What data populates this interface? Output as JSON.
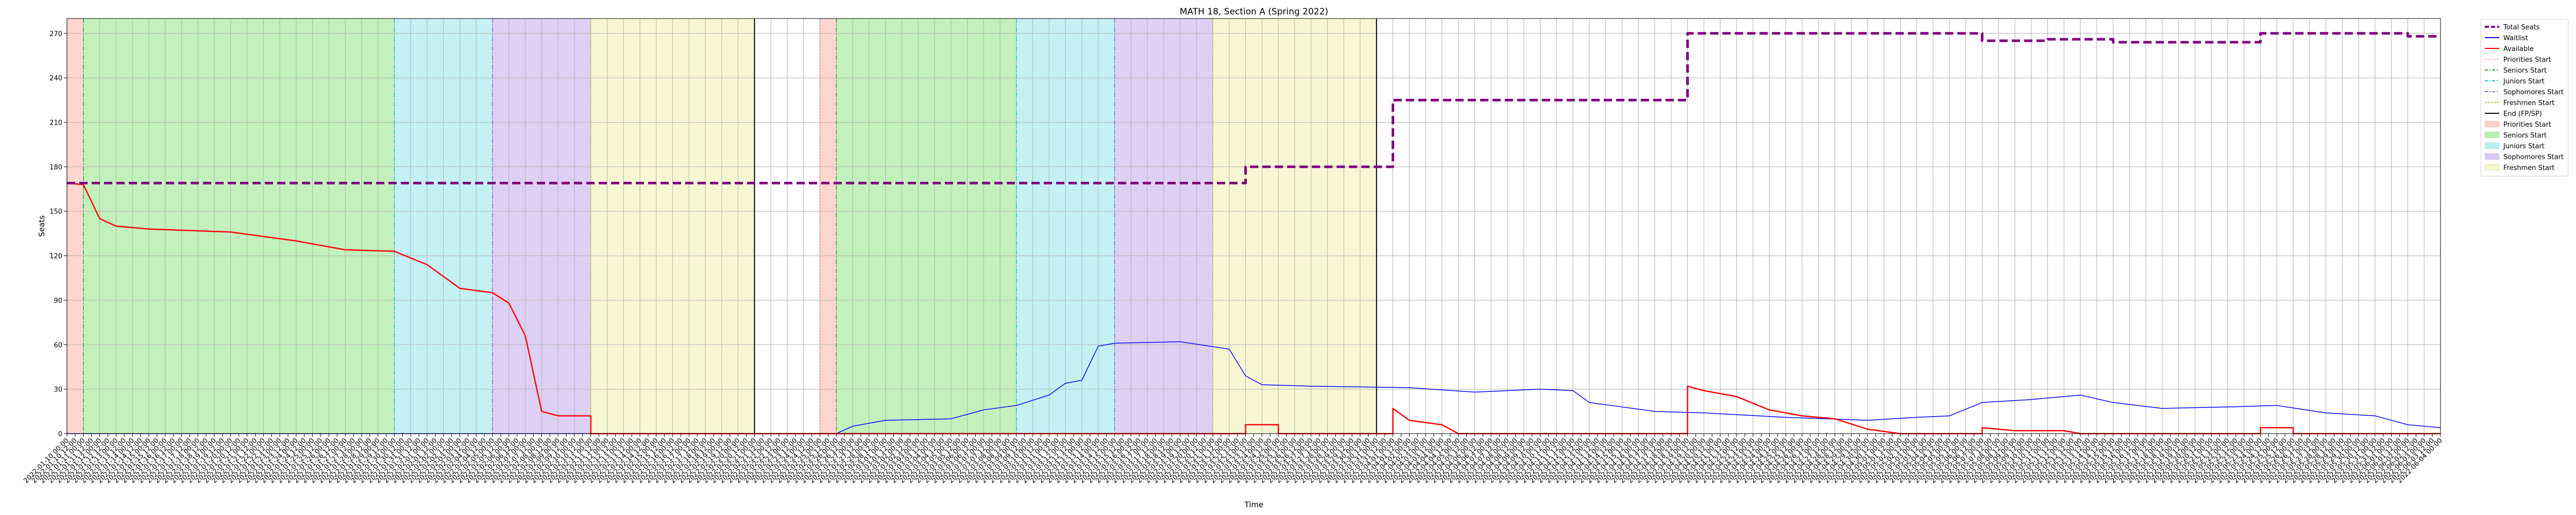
{
  "chart_data": {
    "type": "line",
    "title": "MATH 18, Section A (Spring 2022)",
    "xlabel": "Time",
    "ylabel": "Seats",
    "ylim": [
      0,
      280
    ],
    "yticks": [
      0,
      30,
      60,
      90,
      120,
      150,
      180,
      210,
      240,
      270
    ],
    "grid": true,
    "legend_placement": "outside-right-top",
    "colors": {
      "total": "#7f007f",
      "waitlist": "#0000ff",
      "available": "#ff0000",
      "priorities": "#ffb3a8",
      "seniors": "#86e07a",
      "juniors": "#7fe0e6",
      "sophomores": "#b59ae6",
      "freshmen": "#f0f0a8",
      "end": "#000000"
    },
    "x_range": [
      "2022-01-10",
      "2022-06-04"
    ],
    "series": [
      {
        "name": "Total Seats",
        "style": "dashed",
        "points": [
          [
            "2022-01-10",
            169
          ],
          [
            "2022-03-23",
            169
          ],
          [
            "2022-03-23",
            180
          ],
          [
            "2022-04-01",
            180
          ],
          [
            "2022-04-01",
            225
          ],
          [
            "2022-04-19",
            225
          ],
          [
            "2022-04-19",
            270
          ],
          [
            "2022-05-07",
            270
          ],
          [
            "2022-05-07",
            265
          ],
          [
            "2022-05-11",
            265
          ],
          [
            "2022-05-11",
            266
          ],
          [
            "2022-05-15",
            266
          ],
          [
            "2022-05-15",
            264
          ],
          [
            "2022-05-24",
            264
          ],
          [
            "2022-05-24",
            270
          ],
          [
            "2022-06-02",
            270
          ],
          [
            "2022-06-02",
            268
          ],
          [
            "2022-06-04",
            268
          ]
        ]
      },
      {
        "name": "Waitlist",
        "style": "solid",
        "points": [
          [
            "2022-01-10",
            0
          ],
          [
            "2022-02-26",
            0
          ],
          [
            "2022-02-27",
            5
          ],
          [
            "2022-03-01",
            9
          ],
          [
            "2022-03-05",
            10
          ],
          [
            "2022-03-07",
            16
          ],
          [
            "2022-03-09",
            19
          ],
          [
            "2022-03-11",
            26
          ],
          [
            "2022-03-12",
            34
          ],
          [
            "2022-03-13",
            36
          ],
          [
            "2022-03-14",
            59
          ],
          [
            "2022-03-15",
            61
          ],
          [
            "2022-03-19",
            62
          ],
          [
            "2022-03-22",
            57
          ],
          [
            "2022-03-23",
            39
          ],
          [
            "2022-03-24",
            33
          ],
          [
            "2022-03-27",
            32
          ],
          [
            "2022-04-02",
            31
          ],
          [
            "2022-04-06",
            28
          ],
          [
            "2022-04-10",
            30
          ],
          [
            "2022-04-12",
            29
          ],
          [
            "2022-04-13",
            21
          ],
          [
            "2022-04-15",
            18
          ],
          [
            "2022-04-17",
            15
          ],
          [
            "2022-04-20",
            14
          ],
          [
            "2022-04-25",
            11
          ],
          [
            "2022-04-30",
            9
          ],
          [
            "2022-05-03",
            11
          ],
          [
            "2022-05-05",
            12
          ],
          [
            "2022-05-07",
            21
          ],
          [
            "2022-05-10",
            23
          ],
          [
            "2022-05-13",
            26
          ],
          [
            "2022-05-15",
            21
          ],
          [
            "2022-05-18",
            17
          ],
          [
            "2022-05-22",
            18
          ],
          [
            "2022-05-25",
            19
          ],
          [
            "2022-05-28",
            14
          ],
          [
            "2022-05-31",
            12
          ],
          [
            "2022-06-02",
            6
          ],
          [
            "2022-06-04",
            4
          ]
        ]
      },
      {
        "name": "Available",
        "style": "solid",
        "points": [
          [
            "2022-01-10",
            169
          ],
          [
            "2022-01-11",
            168
          ],
          [
            "2022-01-12",
            145
          ],
          [
            "2022-01-13",
            140
          ],
          [
            "2022-01-15",
            138
          ],
          [
            "2022-01-20",
            136
          ],
          [
            "2022-01-24",
            130
          ],
          [
            "2022-01-27",
            124
          ],
          [
            "2022-01-30",
            123
          ],
          [
            "2022-02-01",
            114
          ],
          [
            "2022-02-02",
            106
          ],
          [
            "2022-02-03",
            98
          ],
          [
            "2022-02-05",
            95
          ],
          [
            "2022-02-06",
            88
          ],
          [
            "2022-02-07",
            66
          ],
          [
            "2022-02-08",
            15
          ],
          [
            "2022-02-09",
            12
          ],
          [
            "2022-02-11",
            12
          ],
          [
            "2022-02-11",
            0
          ],
          [
            "2022-03-23",
            0
          ],
          [
            "2022-03-23",
            6
          ],
          [
            "2022-03-25",
            6
          ],
          [
            "2022-03-25",
            0
          ],
          [
            "2022-04-01",
            0
          ],
          [
            "2022-04-01",
            17
          ],
          [
            "2022-04-02",
            9
          ],
          [
            "2022-04-04",
            6
          ],
          [
            "2022-04-05",
            0
          ],
          [
            "2022-04-19",
            0
          ],
          [
            "2022-04-19",
            32
          ],
          [
            "2022-04-20",
            29
          ],
          [
            "2022-04-22",
            25
          ],
          [
            "2022-04-24",
            16
          ],
          [
            "2022-04-26",
            12
          ],
          [
            "2022-04-28",
            10
          ],
          [
            "2022-04-30",
            3
          ],
          [
            "2022-05-02",
            0
          ],
          [
            "2022-05-07",
            0
          ],
          [
            "2022-05-07",
            4
          ],
          [
            "2022-05-09",
            2
          ],
          [
            "2022-05-12",
            2
          ],
          [
            "2022-05-13",
            0
          ],
          [
            "2022-05-24",
            0
          ],
          [
            "2022-05-24",
            4
          ],
          [
            "2022-05-26",
            4
          ],
          [
            "2022-05-26",
            0
          ],
          [
            "2022-06-04",
            0
          ]
        ]
      }
    ],
    "periods": [
      {
        "pass": 1,
        "priorities": "2022-01-10",
        "seniors": "2022-01-11",
        "juniors": "2022-01-30",
        "sophomores": "2022-02-05",
        "freshmen": "2022-02-11",
        "end": "2022-02-21"
      },
      {
        "pass": 2,
        "priorities": "2022-02-25",
        "seniors": "2022-02-26",
        "juniors": "2022-03-09",
        "sophomores": "2022-03-15",
        "freshmen": "2022-03-21",
        "end": "2022-03-31"
      }
    ],
    "legend": [
      {
        "label": "Total Seats",
        "kind": "dashed-line",
        "color": "#7f007f"
      },
      {
        "label": "Waitlist",
        "kind": "line",
        "color": "#0000ff"
      },
      {
        "label": "Available",
        "kind": "line",
        "color": "#ff0000"
      },
      {
        "label": "Priorities Start",
        "kind": "dotted-line",
        "color": "#ffb3a8"
      },
      {
        "label": "Seniors Start",
        "kind": "dashdot-line",
        "color": "#2ca02c"
      },
      {
        "label": "Juniors Start",
        "kind": "dashdot-line",
        "color": "#17becf"
      },
      {
        "label": "Sophomores Start",
        "kind": "dashdot-line",
        "color": "#9467bd"
      },
      {
        "label": "Freshmen Start",
        "kind": "dotted-line",
        "color": "#bcbd22"
      },
      {
        "label": "End (FP/SP)",
        "kind": "line",
        "color": "#000000"
      },
      {
        "label": "Priorities Start",
        "kind": "patch",
        "color": "#ffcfc8"
      },
      {
        "label": "Seniors Start",
        "kind": "patch",
        "color": "#b8eeb0"
      },
      {
        "label": "Juniors Start",
        "kind": "patch",
        "color": "#b8eff2"
      },
      {
        "label": "Sophomores Start",
        "kind": "patch",
        "color": "#d8c8f2"
      },
      {
        "label": "Freshmen Start",
        "kind": "patch",
        "color": "#f6f6cc"
      }
    ]
  }
}
